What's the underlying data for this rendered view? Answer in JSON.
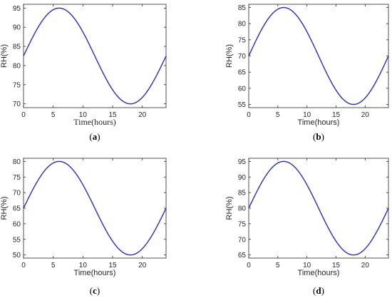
{
  "chart_data": [
    {
      "type": "line",
      "panel": "a",
      "caption": "(a)",
      "caption_letter": "a",
      "xlabel": "Time(hours)",
      "ylabel": "RH(%)",
      "xlim": [
        0,
        24
      ],
      "ylim": [
        69,
        96
      ],
      "xticks": [
        0,
        5,
        10,
        15,
        20
      ],
      "yticks": [
        70,
        75,
        80,
        85,
        90,
        95
      ],
      "grid": false,
      "series": [
        {
          "mean": 82.5,
          "amplitude": 12.5,
          "period_hours": 24,
          "peak_hour": 6
        }
      ]
    },
    {
      "type": "line",
      "panel": "b",
      "caption": "(b)",
      "caption_letter": "b",
      "xlabel": "Time(hours)",
      "ylabel": "RH(%)",
      "xlim": [
        0,
        24
      ],
      "ylim": [
        54,
        86
      ],
      "xticks": [
        0,
        5,
        10,
        15,
        20
      ],
      "yticks": [
        55,
        60,
        65,
        70,
        75,
        80,
        85
      ],
      "grid": false,
      "series": [
        {
          "mean": 70,
          "amplitude": 15,
          "period_hours": 24,
          "peak_hour": 6
        }
      ]
    },
    {
      "type": "line",
      "panel": "c",
      "caption": "(c)",
      "caption_letter": "c",
      "xlabel": "Time(hours)",
      "ylabel": "RH(%)",
      "xlim": [
        0,
        24
      ],
      "ylim": [
        49,
        81
      ],
      "xticks": [
        0,
        5,
        10,
        15,
        20
      ],
      "yticks": [
        50,
        55,
        60,
        65,
        70,
        75,
        80
      ],
      "grid": false,
      "series": [
        {
          "mean": 65,
          "amplitude": 15,
          "period_hours": 24,
          "peak_hour": 6
        }
      ]
    },
    {
      "type": "line",
      "panel": "d",
      "caption": "(d)",
      "caption_letter": "d",
      "xlabel": "Time(hours)",
      "ylabel": "RH(%)",
      "xlim": [
        0,
        24
      ],
      "ylim": [
        64,
        96
      ],
      "xticks": [
        0,
        5,
        10,
        15,
        20
      ],
      "yticks": [
        65,
        70,
        75,
        80,
        85,
        90,
        95
      ],
      "grid": false,
      "series": [
        {
          "mean": 80,
          "amplitude": 15,
          "period_hours": 24,
          "peak_hour": 6
        }
      ]
    }
  ],
  "colors": {
    "line": "#2b2bbf",
    "axis": "#262626"
  }
}
